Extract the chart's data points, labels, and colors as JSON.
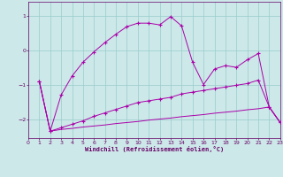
{
  "background_color": "#cce8e8",
  "grid_color": "#99cccc",
  "line_color": "#aa00aa",
  "xlabel": "Windchill (Refroidissement éolien,°C)",
  "xlabel_color": "#660066",
  "tick_color": "#660066",
  "xlim": [
    0,
    23
  ],
  "ylim": [
    -2.55,
    1.4
  ],
  "yticks": [
    1,
    0,
    -1,
    -2
  ],
  "xticks": [
    0,
    1,
    2,
    3,
    4,
    5,
    6,
    7,
    8,
    9,
    10,
    11,
    12,
    13,
    14,
    15,
    16,
    17,
    18,
    19,
    20,
    21,
    22,
    23
  ],
  "series1_x": [
    1,
    2,
    3,
    4,
    5,
    6,
    7,
    8,
    9,
    10,
    11,
    12,
    13,
    14,
    15,
    16,
    17,
    18,
    19,
    20,
    21,
    22,
    23
  ],
  "series1_y": [
    -0.9,
    -2.35,
    -1.3,
    -0.75,
    -0.35,
    -0.05,
    0.22,
    0.46,
    0.68,
    0.78,
    0.78,
    0.73,
    0.97,
    0.7,
    -0.35,
    -1.0,
    -0.55,
    -0.45,
    -0.5,
    -0.28,
    -0.1,
    -1.65,
    -2.1
  ],
  "series2_x": [
    1,
    2,
    3,
    4,
    5,
    6,
    7,
    8,
    9,
    10,
    11,
    12,
    13,
    14,
    15,
    16,
    17,
    18,
    19,
    20,
    21,
    22,
    23
  ],
  "series2_y": [
    -0.9,
    -2.35,
    -2.25,
    -2.15,
    -2.05,
    -1.92,
    -1.82,
    -1.72,
    -1.62,
    -1.52,
    -1.47,
    -1.42,
    -1.37,
    -1.27,
    -1.22,
    -1.17,
    -1.12,
    -1.07,
    -1.02,
    -0.97,
    -0.87,
    -1.65,
    -2.1
  ],
  "series3_x": [
    1,
    2,
    3,
    4,
    5,
    6,
    7,
    8,
    9,
    10,
    11,
    12,
    13,
    14,
    15,
    16,
    17,
    18,
    19,
    20,
    21,
    22,
    23
  ],
  "series3_y": [
    -0.9,
    -2.35,
    -2.3,
    -2.27,
    -2.23,
    -2.2,
    -2.17,
    -2.13,
    -2.1,
    -2.07,
    -2.03,
    -2.0,
    -1.97,
    -1.93,
    -1.9,
    -1.87,
    -1.83,
    -1.8,
    -1.77,
    -1.73,
    -1.7,
    -1.65,
    -2.1
  ]
}
